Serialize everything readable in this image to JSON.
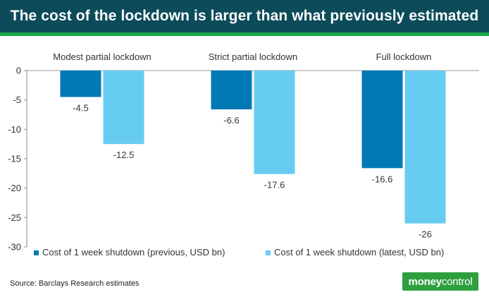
{
  "header": {
    "title": "The cost of the lockdown is larger than what previously estimated"
  },
  "chart_data": {
    "type": "bar",
    "title": "The cost of the lockdown is larger than what previously estimated",
    "categories": [
      "Modest partial lockdown",
      "Strict partial lockdown",
      "Full lockdown"
    ],
    "series": [
      {
        "name": "Cost of 1 week shutdown (previous, USD bn)",
        "values": [
          -4.5,
          -6.6,
          -16.6
        ],
        "labels": [
          "-4.5",
          "-6.6",
          "-16.6"
        ],
        "color": "#0079b4"
      },
      {
        "name": "Cost of 1 week shutdown (latest, USD bn)",
        "values": [
          -12.5,
          -17.6,
          -26
        ],
        "labels": [
          "-12.5",
          "-17.6",
          "-26"
        ],
        "color": "#66ccf2"
      }
    ],
    "ylim": [
      -30,
      0
    ],
    "yticks": [
      0,
      -5,
      -10,
      -15,
      -20,
      -25,
      -30
    ],
    "xlabel": "",
    "ylabel": "",
    "grid": false,
    "legend": "bottom",
    "category_label_position": "top"
  },
  "footer": {
    "source": "Source: Barclays Research estimates",
    "logo_bold": "money",
    "logo_light": "control"
  }
}
